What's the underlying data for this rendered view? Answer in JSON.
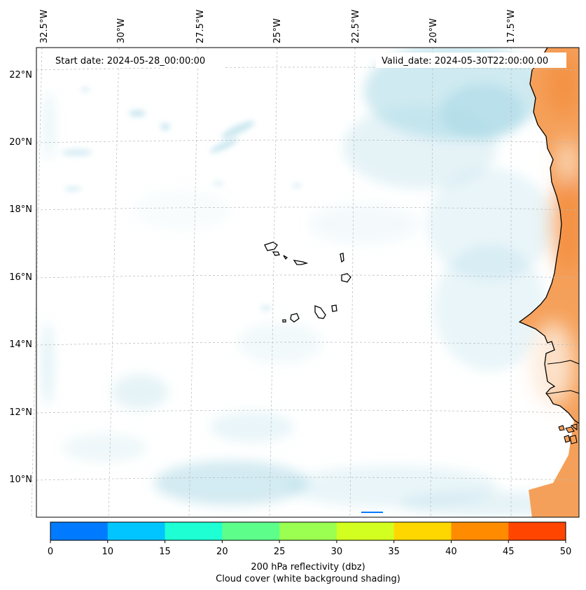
{
  "map": {
    "start_label": "Start date: 2024-05-28_00:00:00",
    "valid_label": "Valid_date: 2024-05-30T22:00:00.00",
    "lon_labels": [
      "32.5°W",
      "30°W",
      "27.5°W",
      "25°W",
      "22.5°W",
      "20°W",
      "17.5°W"
    ],
    "lat_labels": [
      "22°N",
      "20°N",
      "18°N",
      "16°N",
      "14°N",
      "12°N",
      "10°N"
    ],
    "land_color": "#f5a05a",
    "cloud_color": "#a8d8e6"
  },
  "colorbar": {
    "label_line1": "200 hPa reflectivity (dbz)",
    "label_line2": "Cloud cover (white background shading)",
    "ticks": [
      "0",
      "10",
      "15",
      "20",
      "25",
      "30",
      "35",
      "40",
      "45",
      "50"
    ],
    "colors": [
      "#007bff",
      "#00c5ff",
      "#1effd3",
      "#5dff8a",
      "#9aff50",
      "#d3ff20",
      "#ffd700",
      "#ff8c00",
      "#ff4500"
    ]
  }
}
